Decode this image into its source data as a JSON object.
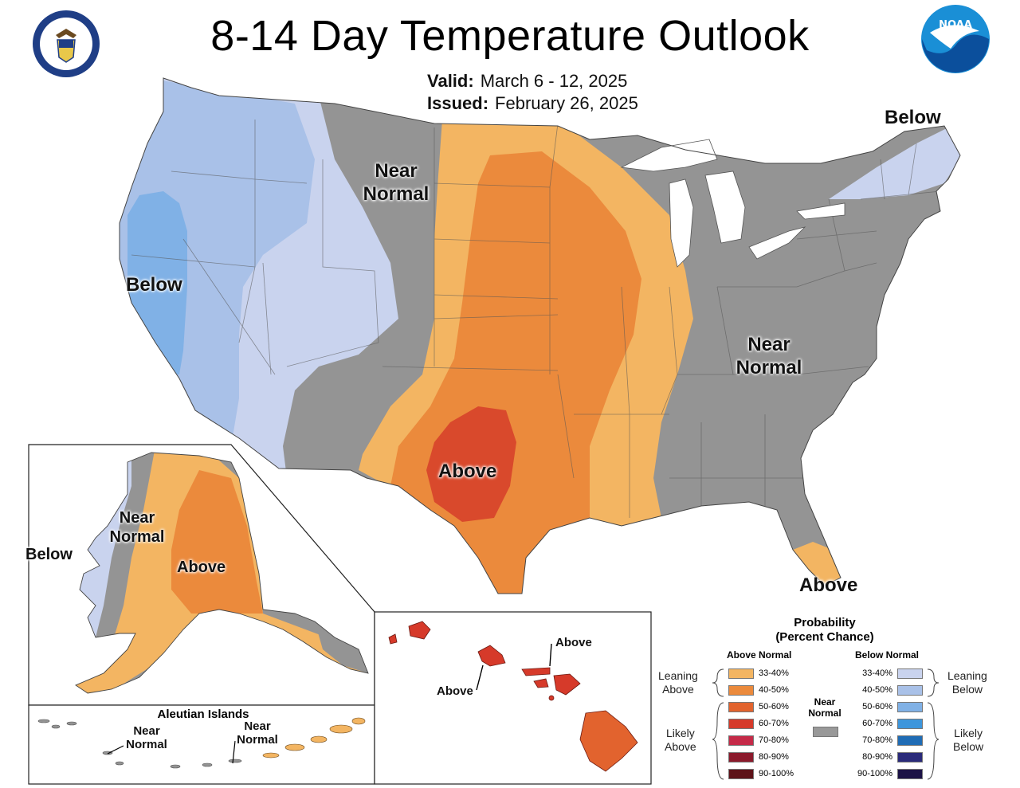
{
  "title": "8-14 Day Temperature Outlook",
  "valid_label": "Valid:",
  "valid_value": "March 6 - 12, 2025",
  "issued_label": "Issued:",
  "issued_value": "February 26, 2025",
  "logos": {
    "left": "Department of Commerce seal",
    "right": "NOAA"
  },
  "map_labels": {
    "conus_west_below": "Below",
    "conus_near_normal_top_1": "Near",
    "conus_near_normal_top_2": "Normal",
    "conus_northeast_below": "Below",
    "conus_above": "Above",
    "conus_east_near_1": "Near",
    "conus_east_near_2": "Normal",
    "florida_above": "Above",
    "alaska_near_1": "Near",
    "alaska_near_2": "Normal",
    "alaska_below": "Below",
    "alaska_above": "Above",
    "aleutian_title": "Aleutian Islands",
    "aleutian_near_a1": "Near",
    "aleutian_near_a2": "Normal",
    "aleutian_near_b1": "Near",
    "aleutian_near_b2": "Normal",
    "hawaii_above_1": "Above",
    "hawaii_above_2": "Above"
  },
  "legend": {
    "title_1": "Probability",
    "title_2": "(Percent Chance)",
    "above_header": "Above Normal",
    "below_header": "Below Normal",
    "near_header_1": "Near",
    "near_header_2": "Normal",
    "leaning_above_1": "Leaning",
    "leaning_above_2": "Above",
    "likely_above_1": "Likely",
    "likely_above_2": "Above",
    "leaning_below_1": "Leaning",
    "leaning_below_2": "Below",
    "likely_below_1": "Likely",
    "likely_below_2": "Below",
    "above": [
      {
        "label": "33-40%",
        "color": "#f3b562"
      },
      {
        "label": "40-50%",
        "color": "#eb8a3c"
      },
      {
        "label": "50-60%",
        "color": "#e2632e"
      },
      {
        "label": "60-70%",
        "color": "#d63a2a"
      },
      {
        "label": "70-80%",
        "color": "#c52a48"
      },
      {
        "label": "80-90%",
        "color": "#8b1a2c"
      },
      {
        "label": "90-100%",
        "color": "#5e1218"
      }
    ],
    "below": [
      {
        "label": "33-40%",
        "color": "#c9d3ee"
      },
      {
        "label": "40-50%",
        "color": "#a9c1e8"
      },
      {
        "label": "50-60%",
        "color": "#80b1e6"
      },
      {
        "label": "60-70%",
        "color": "#3d96dc"
      },
      {
        "label": "70-80%",
        "color": "#1f6cb5"
      },
      {
        "label": "80-90%",
        "color": "#2a2a7a"
      },
      {
        "label": "90-100%",
        "color": "#1c1246"
      }
    ],
    "near_color": "#999999"
  }
}
